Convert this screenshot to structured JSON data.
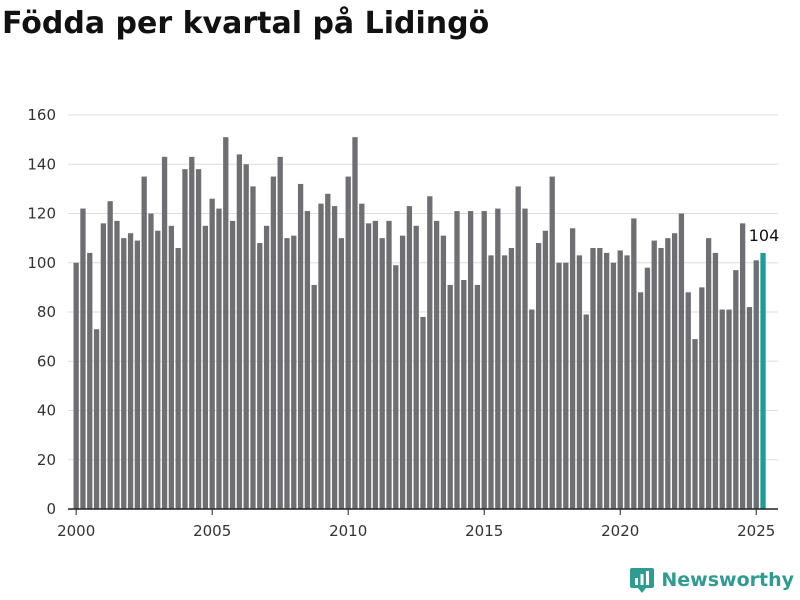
{
  "title": "Födda per kvartal på Lidingö",
  "brand": {
    "name": "Newsworthy",
    "icon": "newsworthy-logo-icon"
  },
  "colors": {
    "bar": "#6f6f73",
    "highlight": "#1a9e95",
    "grid": "#dddddd",
    "axis": "#222222",
    "brand": "#2e9c92"
  },
  "chart_data": {
    "type": "bar",
    "title": "Födda per kvartal på Lidingö",
    "xlabel": "",
    "ylabel": "",
    "x_start": "2000 Q1",
    "x_end": "2025 Q2",
    "xlim": [
      1999.7,
      2025.8
    ],
    "ylim": [
      0,
      160
    ],
    "yticks": [
      0,
      20,
      40,
      60,
      80,
      100,
      120,
      140,
      160
    ],
    "xticks": [
      2000,
      2005,
      2010,
      2015,
      2020,
      2025
    ],
    "grid": true,
    "values": [
      100,
      122,
      104,
      73,
      116,
      125,
      117,
      110,
      112,
      109,
      135,
      120,
      113,
      143,
      115,
      106,
      138,
      143,
      138,
      115,
      126,
      122,
      151,
      117,
      144,
      140,
      131,
      108,
      115,
      135,
      143,
      110,
      111,
      132,
      121,
      91,
      124,
      128,
      123,
      110,
      135,
      151,
      124,
      116,
      117,
      110,
      117,
      99,
      111,
      123,
      115,
      78,
      127,
      117,
      111,
      91,
      121,
      93,
      121,
      91,
      121,
      103,
      122,
      103,
      106,
      131,
      122,
      81,
      108,
      113,
      135,
      100,
      100,
      114,
      103,
      79,
      106,
      106,
      104,
      100,
      105,
      103,
      118,
      88,
      98,
      109,
      106,
      110,
      112,
      120,
      88,
      69,
      90,
      110,
      104,
      81,
      81,
      97,
      116,
      82,
      101,
      104
    ],
    "highlight_last": true,
    "annotation": {
      "text": "104"
    }
  }
}
